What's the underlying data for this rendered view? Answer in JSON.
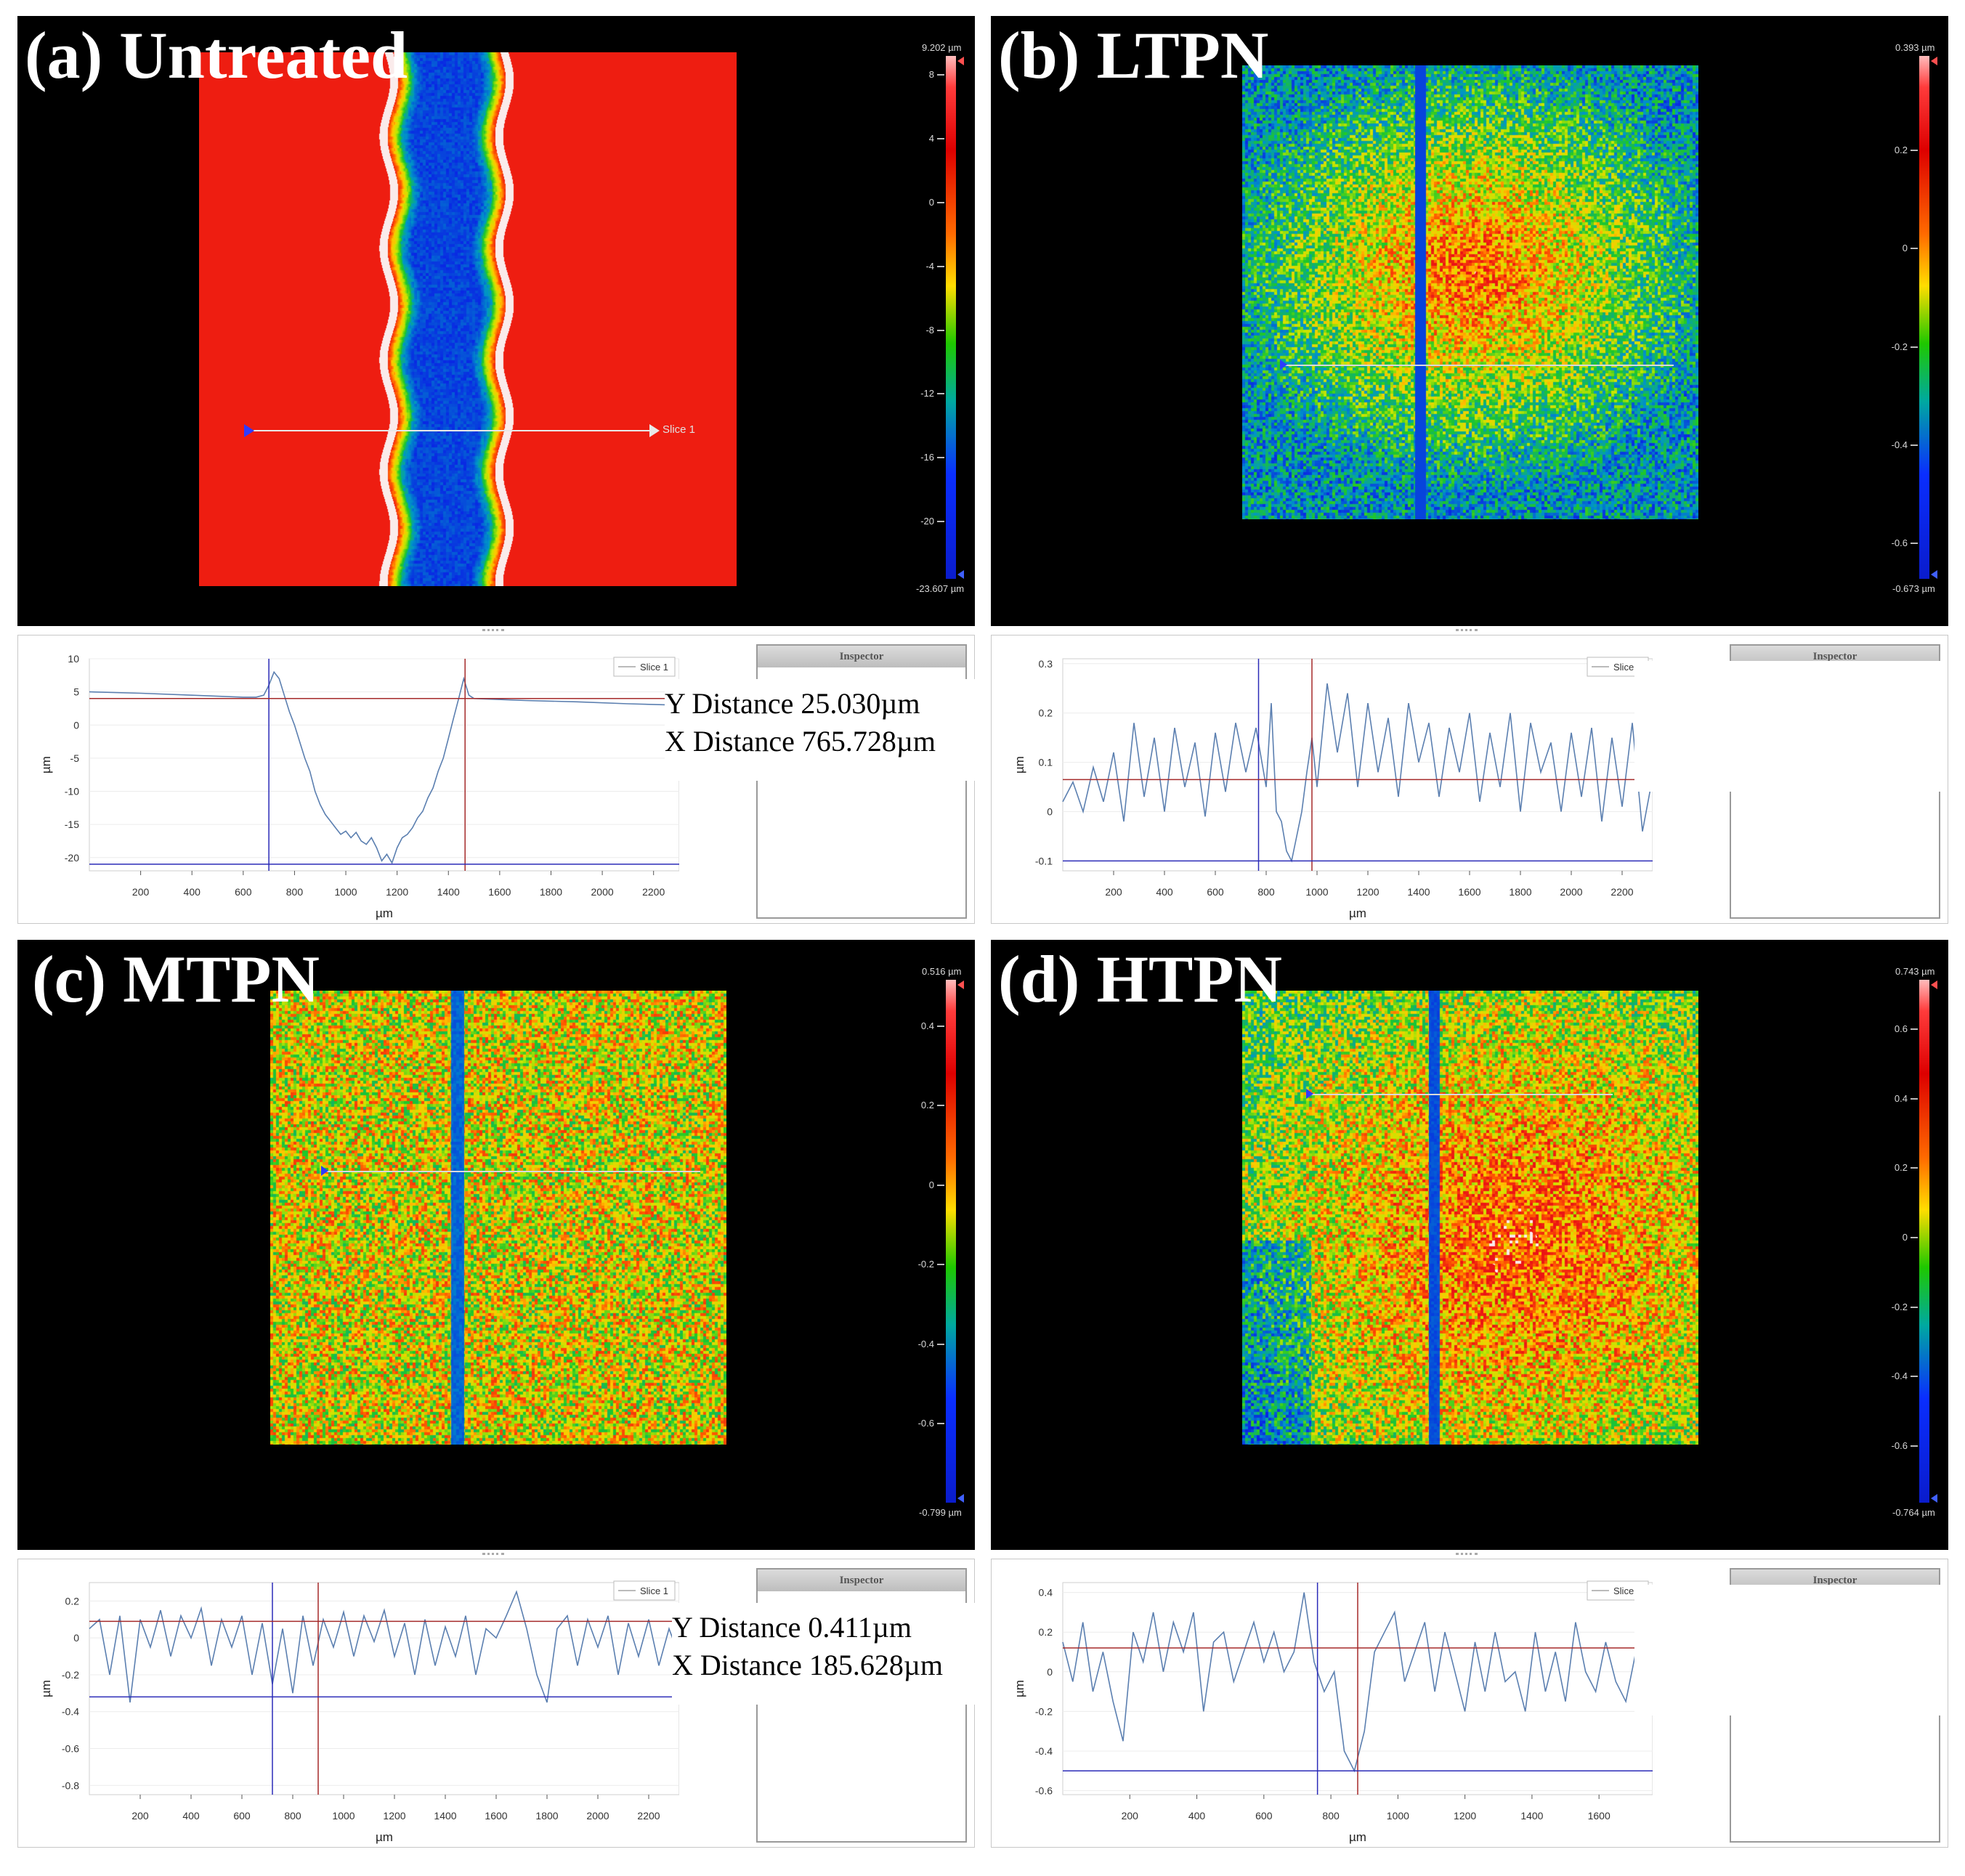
{
  "panels": [
    {
      "id": "a",
      "title": "(a) Untreated",
      "scale": {
        "top_label": "9.202 µm",
        "bottom_label": "-23.607 µm",
        "min": -23.607,
        "max": 9.202,
        "ticks": [
          8,
          4,
          0,
          -4,
          -8,
          -12,
          -16,
          -20
        ],
        "tick_labels": [
          "8",
          "4",
          "0",
          "-4",
          "-8",
          "-12",
          "-16",
          "-20"
        ]
      },
      "slice_label": "Slice 1",
      "map_style": "untreated",
      "measurement": {
        "y_distance": "Y Distance 25.030µm",
        "x_distance": "X Distance 765.728µm"
      }
    },
    {
      "id": "b",
      "title": "(b) LTPN",
      "scale": {
        "top_label": "0.393 µm",
        "bottom_label": "-0.673 µm",
        "min": -0.673,
        "max": 0.393,
        "ticks": [
          0.2,
          0,
          -0.2,
          -0.4,
          -0.6
        ],
        "tick_labels": [
          "0.2",
          "0",
          "-0.2",
          "-0.4",
          "-0.6"
        ]
      },
      "slice_label": "",
      "map_style": "ltpn",
      "measurement": null
    },
    {
      "id": "c",
      "title": "(c) MTPN",
      "scale": {
        "top_label": "0.516 µm",
        "bottom_label": "-0.799 µm",
        "min": -0.799,
        "max": 0.516,
        "ticks": [
          0.4,
          0.2,
          0,
          -0.2,
          -0.4,
          -0.6
        ],
        "tick_labels": [
          "0.4",
          "0.2",
          "0",
          "-0.2",
          "-0.4",
          "-0.6"
        ]
      },
      "slice_label": "",
      "map_style": "mtpn",
      "measurement": {
        "y_distance": "Y Distance 0.411µm",
        "x_distance": "X Distance 185.628µm"
      }
    },
    {
      "id": "d",
      "title": "(d) HTPN",
      "scale": {
        "top_label": "0.743 µm",
        "bottom_label": "-0.764 µm",
        "min": -0.764,
        "max": 0.743,
        "ticks": [
          0.6,
          0.4,
          0.2,
          0,
          -0.2,
          -0.4,
          -0.6
        ],
        "tick_labels": [
          "0.6",
          "0.4",
          "0.2",
          "0",
          "-0.2",
          "-0.4",
          "-0.6"
        ]
      },
      "slice_label": "",
      "map_style": "htpn",
      "measurement": null
    }
  ],
  "inspector_label": "Inspector",
  "legend_label": "Slice 1",
  "chart_data": [
    {
      "type": "line",
      "title": "(a) Untreated",
      "xlabel": "µm",
      "ylabel": "µm",
      "xlim": [
        0,
        2300
      ],
      "ylim": [
        -22,
        10
      ],
      "xticks": [
        200,
        400,
        600,
        800,
        1000,
        1200,
        1400,
        1600,
        1800,
        2000,
        2200
      ],
      "yticks": [
        10,
        5,
        0,
        -5,
        -10,
        -15,
        -20
      ],
      "series": [
        {
          "name": "Slice 1",
          "x": [
            0,
            200,
            400,
            600,
            650,
            680,
            700,
            720,
            740,
            760,
            780,
            800,
            820,
            840,
            860,
            880,
            900,
            920,
            940,
            960,
            980,
            1000,
            1020,
            1040,
            1060,
            1080,
            1100,
            1120,
            1140,
            1160,
            1180,
            1200,
            1220,
            1240,
            1260,
            1280,
            1300,
            1320,
            1340,
            1360,
            1380,
            1400,
            1420,
            1440,
            1460,
            1480,
            1500,
            1700,
            1900,
            2100,
            2300
          ],
          "y": [
            5.0,
            4.8,
            4.5,
            4.2,
            4.2,
            4.5,
            6.0,
            8.0,
            7.0,
            4.5,
            2.0,
            0.0,
            -2.5,
            -5.0,
            -7.0,
            -10.0,
            -12.0,
            -13.5,
            -14.5,
            -15.5,
            -16.5,
            -16.0,
            -17.0,
            -16.2,
            -17.5,
            -18.0,
            -17.0,
            -18.5,
            -20.5,
            -19.5,
            -20.8,
            -18.5,
            -17.0,
            -16.5,
            -15.5,
            -14.0,
            -13.0,
            -11.0,
            -9.5,
            -7.0,
            -5.0,
            -2.0,
            1.0,
            4.0,
            7.0,
            4.5,
            4.0,
            3.7,
            3.5,
            3.2,
            3.0
          ]
        }
      ],
      "cursors": {
        "blue_x": 700,
        "red_x": 1465,
        "red_y": 4.0,
        "blue_y": -21.0
      }
    },
    {
      "type": "line",
      "title": "(b) LTPN",
      "xlabel": "µm",
      "ylabel": "µm",
      "xlim": [
        0,
        2320
      ],
      "ylim": [
        -0.12,
        0.31
      ],
      "xticks": [
        200,
        400,
        600,
        800,
        1000,
        1200,
        1400,
        1600,
        1800,
        2000,
        2200
      ],
      "yticks": [
        0.3,
        0.2,
        0.1,
        0,
        -0.1
      ],
      "series": [
        {
          "name": "Slice 1",
          "x": [
            0,
            40,
            80,
            120,
            160,
            200,
            240,
            280,
            320,
            360,
            400,
            440,
            480,
            520,
            560,
            600,
            640,
            680,
            720,
            760,
            800,
            820,
            840,
            860,
            880,
            900,
            920,
            940,
            960,
            980,
            1000,
            1040,
            1080,
            1120,
            1160,
            1200,
            1240,
            1280,
            1320,
            1360,
            1400,
            1440,
            1480,
            1520,
            1560,
            1600,
            1640,
            1680,
            1720,
            1760,
            1800,
            1840,
            1880,
            1920,
            1960,
            2000,
            2040,
            2080,
            2120,
            2160,
            2200,
            2240,
            2280,
            2320
          ],
          "y": [
            0.02,
            0.06,
            0.0,
            0.09,
            0.02,
            0.12,
            -0.02,
            0.18,
            0.03,
            0.15,
            0.0,
            0.17,
            0.05,
            0.14,
            -0.01,
            0.16,
            0.04,
            0.18,
            0.08,
            0.17,
            0.05,
            0.22,
            0.0,
            -0.02,
            -0.08,
            -0.1,
            -0.05,
            0.0,
            0.08,
            0.15,
            0.05,
            0.26,
            0.12,
            0.24,
            0.05,
            0.22,
            0.08,
            0.19,
            0.03,
            0.22,
            0.1,
            0.18,
            0.03,
            0.17,
            0.08,
            0.2,
            0.02,
            0.16,
            0.05,
            0.2,
            0.0,
            0.18,
            0.08,
            0.14,
            0.0,
            0.16,
            0.03,
            0.17,
            -0.02,
            0.15,
            0.01,
            0.18,
            -0.04,
            0.07
          ]
        }
      ],
      "cursors": {
        "blue_x": 770,
        "red_x": 980,
        "red_y": 0.065,
        "blue_y": -0.1
      }
    },
    {
      "type": "line",
      "title": "(c) MTPN",
      "xlabel": "µm",
      "ylabel": "µm",
      "xlim": [
        0,
        2320
      ],
      "ylim": [
        -0.85,
        0.3
      ],
      "xticks": [
        200,
        400,
        600,
        800,
        1000,
        1200,
        1400,
        1600,
        1800,
        2000,
        2200
      ],
      "yticks": [
        0.2,
        0,
        -0.2,
        -0.4,
        -0.6,
        -0.8
      ],
      "series": [
        {
          "name": "Slice 1",
          "x": [
            0,
            40,
            80,
            120,
            160,
            200,
            240,
            280,
            320,
            360,
            400,
            440,
            480,
            520,
            560,
            600,
            640,
            680,
            720,
            760,
            800,
            840,
            880,
            920,
            960,
            1000,
            1040,
            1080,
            1120,
            1160,
            1200,
            1240,
            1280,
            1320,
            1360,
            1400,
            1440,
            1480,
            1520,
            1560,
            1600,
            1640,
            1680,
            1720,
            1760,
            1800,
            1840,
            1880,
            1920,
            1960,
            2000,
            2040,
            2080,
            2120,
            2160,
            2200,
            2240,
            2280,
            2320
          ],
          "y": [
            0.05,
            0.1,
            -0.2,
            0.12,
            -0.35,
            0.1,
            -0.05,
            0.15,
            -0.1,
            0.12,
            0.0,
            0.16,
            -0.15,
            0.1,
            -0.05,
            0.12,
            -0.2,
            0.08,
            -0.25,
            0.05,
            -0.3,
            0.12,
            -0.15,
            0.1,
            -0.05,
            0.14,
            -0.1,
            0.12,
            -0.02,
            0.15,
            -0.1,
            0.08,
            -0.2,
            0.1,
            -0.15,
            0.06,
            -0.1,
            0.12,
            -0.2,
            0.05,
            0.0,
            0.12,
            0.25,
            0.05,
            -0.2,
            -0.35,
            0.05,
            0.12,
            -0.15,
            0.1,
            -0.05,
            0.12,
            -0.2,
            0.08,
            -0.1,
            0.1,
            -0.15,
            0.05,
            -0.1
          ]
        }
      ],
      "cursors": {
        "blue_x": 720,
        "red_x": 900,
        "red_y": 0.09,
        "blue_y": -0.32
      }
    },
    {
      "type": "line",
      "title": "(d) HTPN",
      "xlabel": "µm",
      "ylabel": "µm",
      "xlim": [
        0,
        1760
      ],
      "ylim": [
        -0.62,
        0.45
      ],
      "xticks": [
        200,
        400,
        600,
        800,
        1000,
        1200,
        1400,
        1600
      ],
      "yticks": [
        0.4,
        0.2,
        0,
        -0.2,
        -0.4,
        -0.6
      ],
      "series": [
        {
          "name": "Slice 1",
          "x": [
            0,
            30,
            60,
            90,
            120,
            150,
            180,
            210,
            240,
            270,
            300,
            330,
            360,
            390,
            420,
            450,
            480,
            510,
            540,
            570,
            600,
            630,
            660,
            690,
            720,
            750,
            780,
            810,
            840,
            870,
            900,
            930,
            960,
            990,
            1020,
            1050,
            1080,
            1110,
            1140,
            1170,
            1200,
            1230,
            1260,
            1290,
            1320,
            1350,
            1380,
            1410,
            1440,
            1470,
            1500,
            1530,
            1560,
            1590,
            1620,
            1650,
            1680,
            1710,
            1740,
            1760
          ],
          "y": [
            0.15,
            -0.05,
            0.25,
            -0.1,
            0.1,
            -0.15,
            -0.35,
            0.2,
            0.05,
            0.3,
            0.0,
            0.25,
            0.1,
            0.3,
            -0.2,
            0.15,
            0.2,
            -0.05,
            0.1,
            0.25,
            0.05,
            0.2,
            0.0,
            0.1,
            0.4,
            0.05,
            -0.1,
            0.0,
            -0.4,
            -0.5,
            -0.3,
            0.1,
            0.2,
            0.3,
            -0.05,
            0.1,
            0.25,
            -0.1,
            0.2,
            0.0,
            -0.2,
            0.15,
            -0.1,
            0.2,
            -0.05,
            0.0,
            -0.2,
            0.2,
            -0.1,
            0.1,
            -0.15,
            0.25,
            0.0,
            -0.1,
            0.15,
            -0.05,
            -0.15,
            0.1,
            -0.05,
            -0.1
          ]
        }
      ],
      "cursors": {
        "blue_x": 760,
        "red_x": 880,
        "red_y": 0.12,
        "blue_y": -0.5
      }
    }
  ]
}
